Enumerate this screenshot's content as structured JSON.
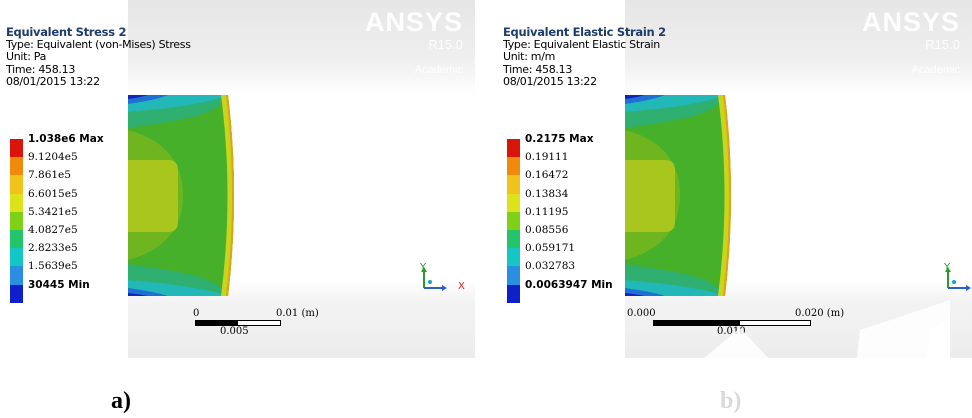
{
  "figure": {
    "captions": [
      "a)",
      "b)"
    ]
  },
  "panels": [
    {
      "title": "Equivalent Stress 2",
      "type": "Type: Equivalent (von-Mises) Stress",
      "unit": "Unit: Pa",
      "time": "Time: 458.13",
      "date": "08/01/2015 13:22",
      "legend": [
        "1.038e6 Max",
        "9.1204e5",
        "7.861e5",
        "6.6015e5",
        "5.3421e5",
        "4.0827e5",
        "2.8233e5",
        "1.5639e5",
        "30445 Min"
      ],
      "scale": {
        "left": "0",
        "right": "0.01 (m)",
        "mid": "0.005"
      },
      "brand": {
        "name": "ANSYS",
        "version": "R15.0",
        "edition": "Academic"
      }
    },
    {
      "title": "Equivalent Elastic Strain 2",
      "type": "Type: Equivalent Elastic Strain",
      "unit": "Unit: m/m",
      "time": "Time: 458.13",
      "date": "08/01/2015 13:22",
      "legend": [
        "0.2175 Max",
        "0.19111",
        "0.16472",
        "0.13834",
        "0.11195",
        "0.08556",
        "0.059171",
        "0.032783",
        "0.0063947 Min"
      ],
      "scale": {
        "left": "0.000",
        "right": "0.020 (m)",
        "mid": "0.010"
      },
      "brand": {
        "name": "ANSYS",
        "version": "R15.0",
        "edition": "Academic"
      }
    }
  ],
  "legend_colors": [
    "#d9140b",
    "#f08a0a",
    "#f2c21c",
    "#dde21a",
    "#7fd118",
    "#25c46a",
    "#14c7c4",
    "#2a8fe0",
    "#1020c8"
  ],
  "triad": {
    "y_label": "Y",
    "x_label": "X"
  }
}
